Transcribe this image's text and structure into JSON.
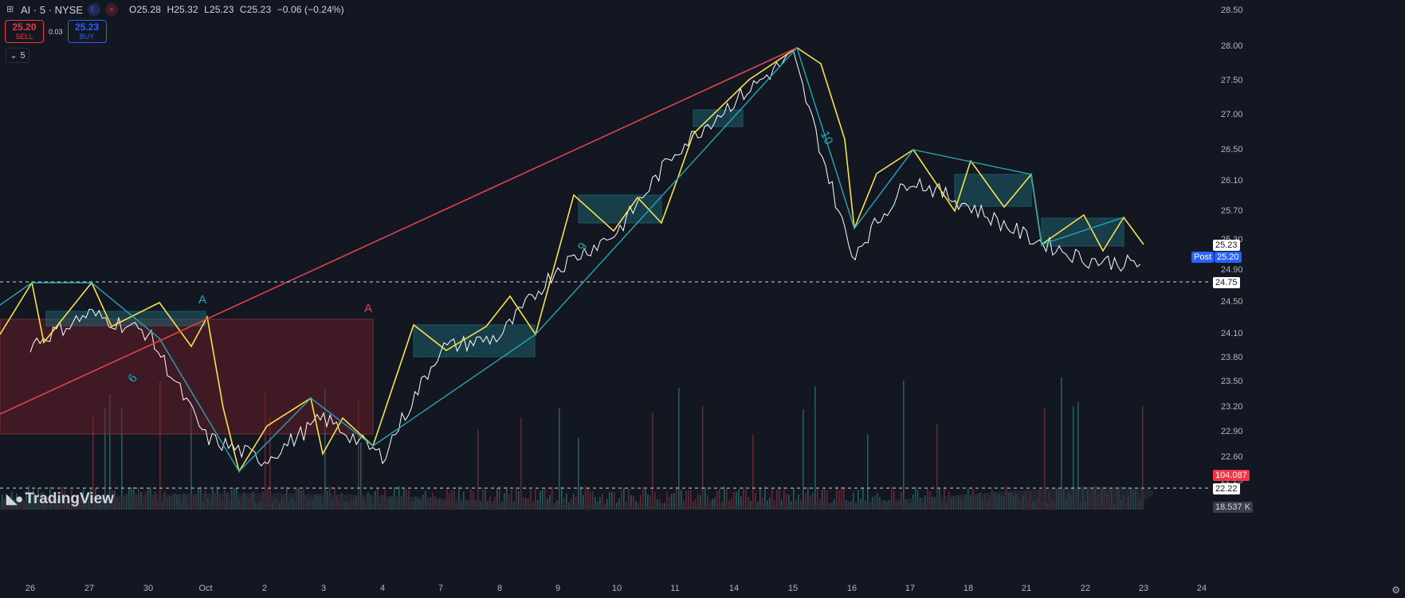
{
  "legend": {
    "symbol": "AI · 5 · NYSE",
    "open": "O25.28",
    "high": "H25.32",
    "low": "L25.23",
    "close": "C25.23",
    "change": "−0.06 (−0.24%)"
  },
  "trade": {
    "sell_price": "25.20",
    "sell_label": "SELL",
    "spread": "0.03",
    "buy_price": "25.23",
    "buy_label": "BUY"
  },
  "collapse_label": "5",
  "logo_text": "TradingView",
  "price_axis": {
    "ticks": [
      "28.50",
      "28.00",
      "27.50",
      "27.00",
      "26.50",
      "26.10",
      "25.70",
      "25.30",
      "24.90",
      "24.50",
      "24.10",
      "23.80",
      "23.50",
      "23.20",
      "22.90",
      "22.60",
      "22.29"
    ]
  },
  "time_axis": {
    "ticks": [
      "26",
      "27",
      "30",
      "Oct",
      "2",
      "3",
      "4",
      "7",
      "8",
      "9",
      "10",
      "11",
      "14",
      "15",
      "16",
      "17",
      "18",
      "21",
      "22",
      "23",
      "24"
    ]
  },
  "price_tags": {
    "last": "25.23",
    "post_label": "Post",
    "post_price": "25.20",
    "dashed_level": "24.75",
    "lower_level": "22.22",
    "volume_red": "104.087",
    "volume_gray": "18.537 K"
  },
  "drawings": {
    "wave_labels": [
      "A",
      "A",
      "9",
      "6",
      "10"
    ]
  },
  "colors": {
    "background": "#131722",
    "price_line": "#ffffff",
    "wave_up": "#f9e14b",
    "wave_teal": "#22a7b8",
    "trend_red": "#e0434c",
    "zone_red": "#6b1e26",
    "zone_teal": "#1e6f7a"
  },
  "chart_data": {
    "type": "line",
    "title": "AI · 5 · NYSE",
    "x": [
      "Sep 26",
      "Sep 27",
      "Sep 30",
      "Oct 1",
      "Oct 2",
      "Oct 3",
      "Oct 4",
      "Oct 7",
      "Oct 8",
      "Oct 9",
      "Oct 10",
      "Oct 11",
      "Oct 14",
      "Oct 15",
      "Oct 16",
      "Oct 17",
      "Oct 18",
      "Oct 21",
      "Oct 22",
      "Oct 23"
    ],
    "series": [
      {
        "values": [
          24.2,
          24.6,
          24.35,
          23.0,
          22.7,
          23.25,
          22.75,
          24.15,
          24.3,
          25.2,
          25.65,
          26.7,
          27.35,
          27.95,
          25.35,
          26.35,
          26.0,
          25.6,
          25.3,
          25.23
        ]
      }
    ],
    "ylim": [
      22.0,
      28.6
    ],
    "xlabel": "",
    "ylabel": ""
  }
}
